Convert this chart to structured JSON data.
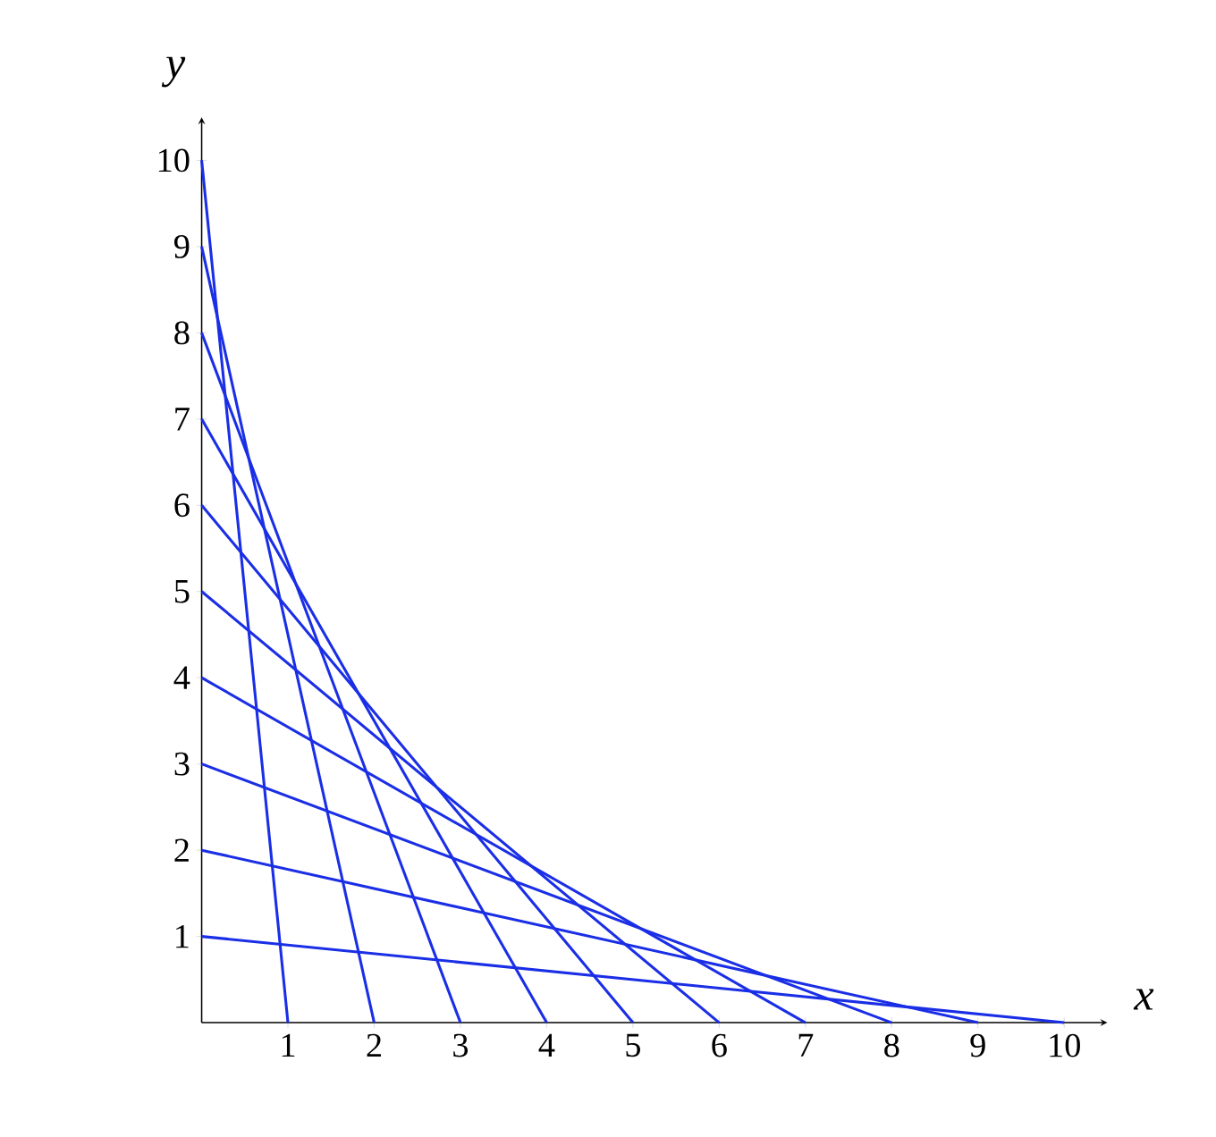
{
  "chart_data": {
    "type": "line",
    "xlabel": "x",
    "ylabel": "y",
    "xlim": [
      0,
      10.5
    ],
    "ylim": [
      0,
      10.5
    ],
    "xticks": [
      1,
      2,
      3,
      4,
      5,
      6,
      7,
      8,
      9,
      10
    ],
    "yticks": [
      1,
      2,
      3,
      4,
      5,
      6,
      7,
      8,
      9,
      10
    ],
    "line_style": "solid",
    "series": [
      {
        "color": "#1a2ee6",
        "x": [
          0,
          10
        ],
        "values": [
          1,
          0
        ]
      },
      {
        "color": "#1a2ee6",
        "x": [
          0,
          9
        ],
        "values": [
          2,
          0
        ]
      },
      {
        "color": "#1a2ee6",
        "x": [
          0,
          8
        ],
        "values": [
          3,
          0
        ]
      },
      {
        "color": "#1a2ee6",
        "x": [
          0,
          7
        ],
        "values": [
          4,
          0
        ]
      },
      {
        "color": "#1a2ee6",
        "x": [
          0,
          6
        ],
        "values": [
          5,
          0
        ]
      },
      {
        "color": "#1a2ee6",
        "x": [
          0,
          5
        ],
        "values": [
          6,
          0
        ]
      },
      {
        "color": "#1a2ee6",
        "x": [
          0,
          4
        ],
        "values": [
          7,
          0
        ]
      },
      {
        "color": "#1a2ee6",
        "x": [
          0,
          3
        ],
        "values": [
          8,
          0
        ]
      },
      {
        "color": "#1a2ee6",
        "x": [
          0,
          2
        ],
        "values": [
          9,
          0
        ]
      },
      {
        "color": "#1a2ee6",
        "x": [
          0,
          1
        ],
        "values": [
          10,
          0
        ]
      }
    ]
  }
}
